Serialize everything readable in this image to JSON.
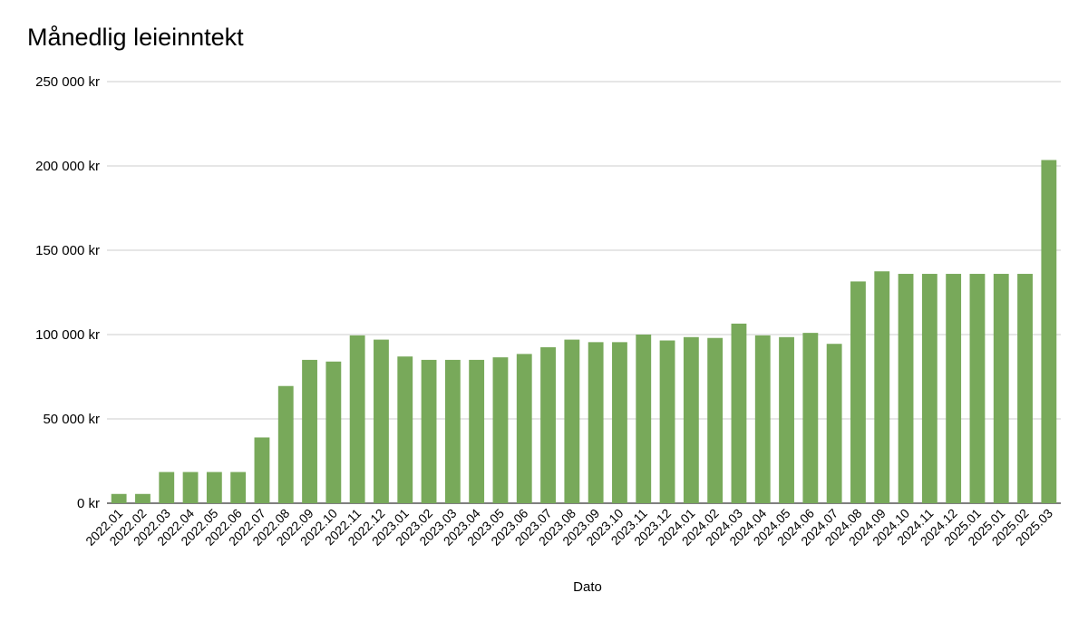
{
  "chart_data": {
    "type": "bar",
    "title": "Månedlig leieinntekt",
    "xlabel": "Dato",
    "ylabel": "",
    "ylim": [
      0,
      250000
    ],
    "y_ticks": [
      0,
      50000,
      100000,
      150000,
      200000,
      250000
    ],
    "y_tick_labels": [
      "0 kr",
      "50 000 kr",
      "100 000 kr",
      "150 000 kr",
      "200 000 kr",
      "250 000 kr"
    ],
    "grid": true,
    "legend": "none",
    "bar_color": "#78a95a",
    "gridline_color": "#cccccc",
    "categories": [
      "2022.01",
      "2022.02",
      "2022.03",
      "2022.04",
      "2022.05",
      "2022.06",
      "2022.07",
      "2022.08",
      "2022.09",
      "2022.10",
      "2022.11",
      "2022.12",
      "2023.01",
      "2023.02",
      "2023.03",
      "2023.04",
      "2023.05",
      "2023.06",
      "2023.07",
      "2023.08",
      "2023.09",
      "2023.10",
      "2023.11",
      "2023.12",
      "2024.01",
      "2024.02",
      "2024.03",
      "2024.04",
      "2024.05",
      "2024.06",
      "2024.07",
      "2024.08",
      "2024.09",
      "2024.10",
      "2024.11",
      "2024.12",
      "2025.01",
      "2025.01",
      "2025.02",
      "2025.03"
    ],
    "values": [
      5500,
      5500,
      18500,
      18500,
      18500,
      18500,
      39000,
      69500,
      85000,
      84000,
      99500,
      97000,
      87000,
      85000,
      85000,
      85000,
      86500,
      88500,
      92500,
      97000,
      95500,
      95500,
      100000,
      96500,
      98500,
      98000,
      106500,
      99500,
      98500,
      101000,
      94500,
      131500,
      137500,
      136000,
      136000,
      136000,
      136000,
      136000,
      136000,
      203500
    ]
  }
}
